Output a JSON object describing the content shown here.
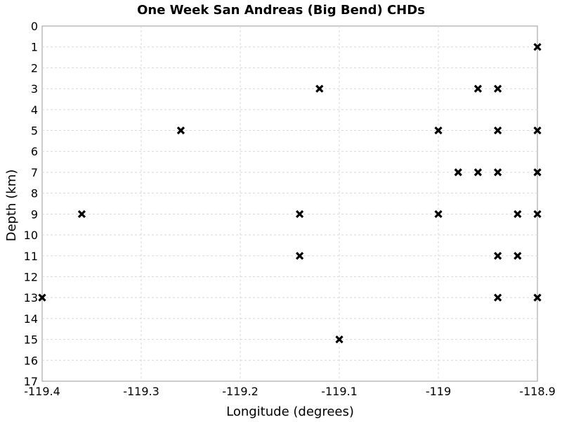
{
  "chart_data": {
    "type": "scatter",
    "title": "One Week San Andreas (Big Bend) CHDs",
    "xlabel": "Longitude (degrees)",
    "ylabel": "Depth (km)",
    "xlim": [
      -119.4,
      -118.9
    ],
    "ylim": [
      0,
      17
    ],
    "y_inverted": true,
    "grid": true,
    "marker": "x",
    "x_ticks": [
      -119.4,
      -119.3,
      -119.2,
      -119.1,
      -119.0,
      -118.9
    ],
    "x_tick_labels": [
      "-119.4",
      "-119.3",
      "-119.2",
      "-119.1",
      "-119",
      "-118.9"
    ],
    "y_ticks": [
      0,
      1,
      2,
      3,
      4,
      5,
      6,
      7,
      8,
      9,
      10,
      11,
      12,
      13,
      14,
      15,
      16,
      17
    ],
    "y_tick_labels": [
      "0",
      "1",
      "2",
      "3",
      "4",
      "5",
      "6",
      "7",
      "8",
      "9",
      "10",
      "11",
      "12",
      "13",
      "14",
      "15",
      "16",
      "17"
    ],
    "points": [
      {
        "x": -118.9,
        "y": 1
      },
      {
        "x": -119.12,
        "y": 3
      },
      {
        "x": -118.96,
        "y": 3
      },
      {
        "x": -118.94,
        "y": 3
      },
      {
        "x": -119.26,
        "y": 5
      },
      {
        "x": -119.0,
        "y": 5
      },
      {
        "x": -118.94,
        "y": 5
      },
      {
        "x": -118.9,
        "y": 5
      },
      {
        "x": -118.98,
        "y": 7
      },
      {
        "x": -118.96,
        "y": 7
      },
      {
        "x": -118.94,
        "y": 7
      },
      {
        "x": -118.9,
        "y": 7
      },
      {
        "x": -119.36,
        "y": 9
      },
      {
        "x": -119.14,
        "y": 9
      },
      {
        "x": -119.0,
        "y": 9
      },
      {
        "x": -118.92,
        "y": 9
      },
      {
        "x": -118.9,
        "y": 9
      },
      {
        "x": -119.14,
        "y": 11
      },
      {
        "x": -118.94,
        "y": 11
      },
      {
        "x": -118.92,
        "y": 11
      },
      {
        "x": -119.4,
        "y": 13
      },
      {
        "x": -118.94,
        "y": 13
      },
      {
        "x": -118.9,
        "y": 13
      },
      {
        "x": -119.1,
        "y": 15
      }
    ]
  }
}
